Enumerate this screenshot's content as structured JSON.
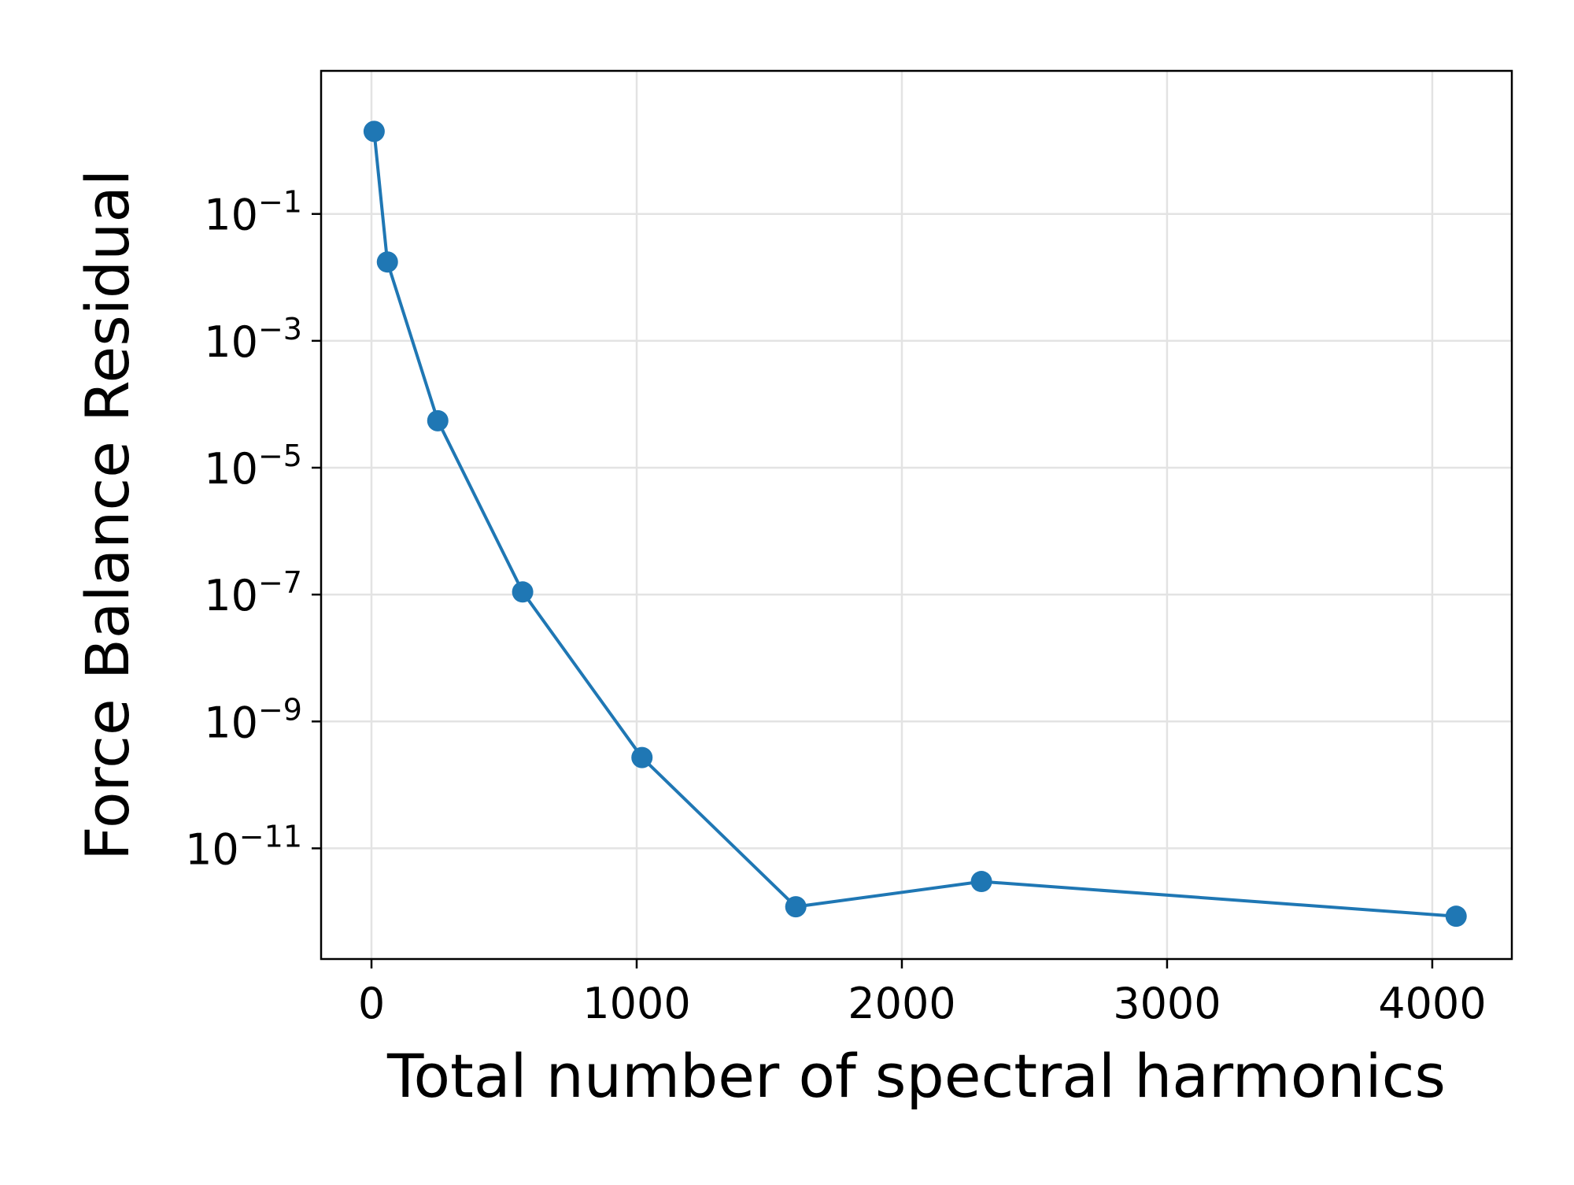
{
  "chart_data": {
    "type": "line",
    "title": "",
    "xlabel": "Total number of spectral harmonics",
    "ylabel": "Force Balance Residual",
    "x_scale": "linear",
    "y_scale": "log",
    "xlim": [
      -190,
      4300
    ],
    "ylim": [
      1.8e-13,
      18
    ],
    "x_ticks": [
      0,
      1000,
      2000,
      3000,
      4000
    ],
    "x_tick_labels": [
      "0",
      "1000",
      "2000",
      "3000",
      "4000"
    ],
    "y_ticks": [
      0.1,
      0.001,
      1e-05,
      1e-07,
      1e-09,
      1e-11
    ],
    "y_tick_labels": [
      {
        "base": "10",
        "exp": "−1"
      },
      {
        "base": "10",
        "exp": "−3"
      },
      {
        "base": "10",
        "exp": "−5"
      },
      {
        "base": "10",
        "exp": "−7"
      },
      {
        "base": "10",
        "exp": "−9"
      },
      {
        "base": "10",
        "exp": "−11"
      }
    ],
    "grid": true,
    "legend": "none",
    "color": "#1f77b4",
    "series": [
      {
        "x": [
          10,
          60,
          250,
          570,
          1020,
          1600,
          2300,
          4090
        ],
        "y": [
          2.0,
          0.0175,
          5.5e-05,
          1.1e-07,
          2.7e-10,
          1.2e-12,
          3e-12,
          8.5e-13
        ]
      }
    ]
  }
}
